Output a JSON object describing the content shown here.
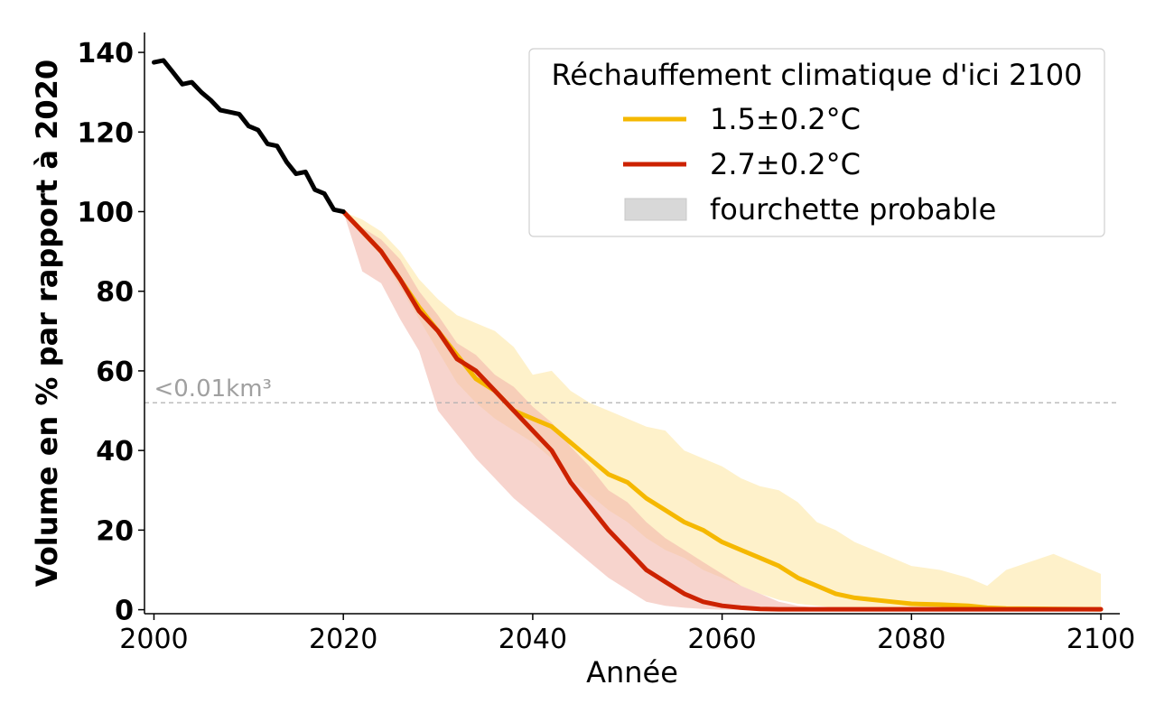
{
  "chart_data": {
    "type": "line",
    "xlabel": "Année",
    "ylabel": "Volume en % par rapport à 2020",
    "xlim": [
      1999,
      2102
    ],
    "ylim": [
      -1,
      145
    ],
    "xticks": [
      2000,
      2020,
      2040,
      2060,
      2080,
      2100
    ],
    "yticks": [
      0,
      20,
      40,
      60,
      80,
      100,
      120,
      140
    ],
    "grid": false,
    "legend": {
      "title": "Réchauffement climatique d'ici 2100",
      "placement": "top-right",
      "entries": [
        {
          "label": "1.5±0.2°C",
          "color": "#f5b800",
          "kind": "line"
        },
        {
          "label": "2.7±0.2°C",
          "color": "#cc2200",
          "kind": "line"
        },
        {
          "label": "fourchette probable",
          "color": "#d8d8d8",
          "kind": "band"
        }
      ]
    },
    "threshold": {
      "y": 52,
      "label": "<0.01km³",
      "color": "#b0b0b0"
    },
    "historical": {
      "color": "#000000",
      "x": [
        2000,
        2001,
        2002,
        2003,
        2004,
        2005,
        2006,
        2007,
        2008,
        2009,
        2010,
        2011,
        2012,
        2013,
        2014,
        2015,
        2016,
        2017,
        2018,
        2019,
        2020
      ],
      "y": [
        137.5,
        138,
        135,
        132,
        132.5,
        130,
        128,
        125.5,
        125,
        124.5,
        121.5,
        120.5,
        117,
        116.5,
        112.5,
        109.5,
        110,
        105.5,
        104.5,
        100.5,
        100
      ]
    },
    "series": [
      {
        "name": "1.5±0.2°C",
        "color": "#f5b800",
        "band_color": "#fde8a6",
        "x": [
          2020,
          2022,
          2024,
          2026,
          2028,
          2030,
          2032,
          2034,
          2036,
          2038,
          2040,
          2042,
          2044,
          2046,
          2048,
          2050,
          2052,
          2054,
          2056,
          2058,
          2060,
          2062,
          2064,
          2066,
          2068,
          2070,
          2072,
          2074,
          2076,
          2078,
          2080,
          2083,
          2086,
          2088,
          2090,
          2095,
          2100
        ],
        "y": [
          100,
          95,
          90,
          83,
          76,
          70,
          64,
          58,
          55,
          50,
          48,
          46,
          42,
          38,
          34,
          32,
          28,
          25,
          22,
          20,
          17,
          15,
          13,
          11,
          8,
          6,
          4,
          3,
          2.5,
          2,
          1.5,
          1.3,
          1,
          0.5,
          0.3,
          0.2,
          0.1
        ],
        "lower": [
          100,
          94,
          89,
          81,
          73,
          65,
          57,
          52,
          48,
          45,
          42,
          38,
          33,
          29,
          25,
          22,
          18,
          15,
          13,
          10,
          8,
          6,
          4,
          2.5,
          1.5,
          1,
          0.5,
          0.3,
          0.2,
          0.1,
          0,
          0,
          0,
          0,
          0,
          0,
          0
        ],
        "upper": [
          100,
          98,
          95,
          90,
          83,
          78,
          74,
          72,
          70,
          66,
          59,
          60,
          55,
          52,
          50,
          48,
          46,
          45,
          40,
          38,
          36,
          33,
          31,
          30,
          27,
          22,
          20,
          17,
          15,
          13,
          11,
          10,
          8,
          6,
          10,
          14,
          9
        ]
      },
      {
        "name": "2.7±0.2°C",
        "color": "#cc2200",
        "band_color": "#f2b7ab",
        "x": [
          2020,
          2022,
          2024,
          2026,
          2028,
          2030,
          2032,
          2034,
          2036,
          2038,
          2040,
          2042,
          2044,
          2046,
          2048,
          2050,
          2052,
          2054,
          2056,
          2058,
          2060,
          2062,
          2064,
          2066,
          2068,
          2070,
          2080,
          2090,
          2100
        ],
        "y": [
          100,
          95,
          90,
          83,
          75,
          70,
          63,
          60,
          55,
          50,
          45,
          40,
          32,
          26,
          20,
          15,
          10,
          7,
          4,
          2,
          1,
          0.5,
          0.2,
          0.1,
          0.1,
          0.1,
          0.1,
          0.1,
          0.1
        ],
        "lower": [
          100,
          85,
          82,
          73,
          65,
          50,
          44,
          38,
          33,
          28,
          24,
          20,
          16,
          12,
          8,
          5,
          2,
          1,
          0.5,
          0.2,
          0,
          0,
          0,
          0,
          0,
          0,
          0,
          0,
          0
        ],
        "upper": [
          100,
          96,
          93,
          88,
          80,
          74,
          67,
          64,
          59,
          56,
          51,
          47,
          41,
          36,
          30,
          27,
          22,
          18,
          15,
          12,
          9,
          6,
          4,
          2,
          1,
          0.5,
          0.2,
          0.1,
          0.1
        ]
      }
    ]
  }
}
